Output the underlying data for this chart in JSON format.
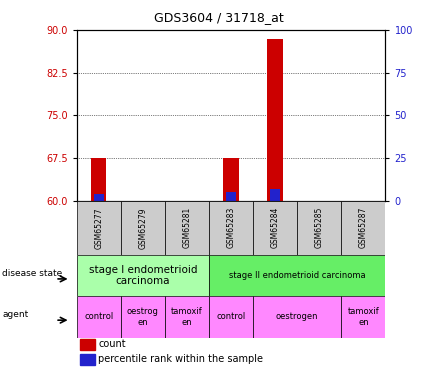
{
  "title": "GDS3604 / 31718_at",
  "samples": [
    "GSM65277",
    "GSM65279",
    "GSM65281",
    "GSM65283",
    "GSM65284",
    "GSM65285",
    "GSM65287"
  ],
  "count_values": [
    67.5,
    60.0,
    60.0,
    67.5,
    88.5,
    60.0,
    60.0
  ],
  "percentile_values": [
    61.2,
    60.0,
    60.0,
    61.5,
    62.0,
    60.0,
    60.0
  ],
  "ymin": 60,
  "ymax": 90,
  "yticks_left": [
    60,
    67.5,
    75,
    82.5,
    90
  ],
  "yticks_right": [
    0,
    25,
    50,
    75,
    100
  ],
  "bar_bottom": 60,
  "bar_color_red": "#cc0000",
  "bar_color_blue": "#2222cc",
  "disease_state_groups": [
    {
      "label": "stage I endometrioid\ncarcinoma",
      "start": 0,
      "end": 3,
      "color": "#aaffaa",
      "fontsize": 7.5
    },
    {
      "label": "stage II endometrioid carcinoma",
      "start": 3,
      "end": 7,
      "color": "#66ee66",
      "fontsize": 6
    }
  ],
  "agent_groups": [
    {
      "label": "control",
      "start": 0,
      "end": 1,
      "color": "#ff88ff"
    },
    {
      "label": "oestrog\nen",
      "start": 1,
      "end": 2,
      "color": "#ff88ff"
    },
    {
      "label": "tamoxif\nen",
      "start": 2,
      "end": 3,
      "color": "#ff88ff"
    },
    {
      "label": "control",
      "start": 3,
      "end": 4,
      "color": "#ff88ff"
    },
    {
      "label": "oestrogen",
      "start": 4,
      "end": 6,
      "color": "#ff88ff"
    },
    {
      "label": "tamoxif\nen",
      "start": 6,
      "end": 7,
      "color": "#ff88ff"
    }
  ],
  "legend_count_label": "count",
  "legend_pct_label": "percentile rank within the sample",
  "disease_state_label": "disease state",
  "agent_label": "agent",
  "left_axis_color": "#cc0000",
  "right_axis_color": "#2222cc",
  "grid_color": "#000000",
  "sample_bg_color": "#cccccc",
  "bar_width": 0.35
}
